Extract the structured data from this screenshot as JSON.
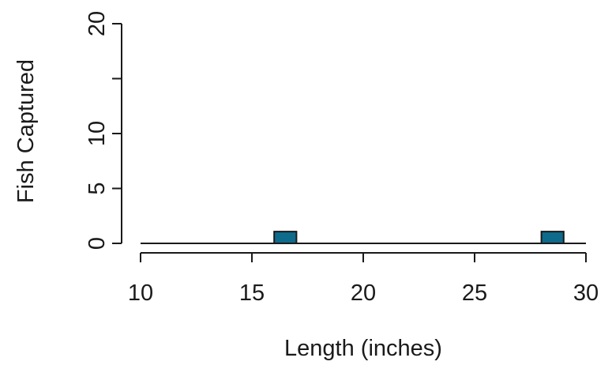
{
  "chart_data": {
    "type": "bar",
    "xlabel": "Length (inches)",
    "ylabel": "Fish Captured",
    "xlim": [
      10,
      30
    ],
    "ylim": [
      0,
      20
    ],
    "x_ticks": [
      10,
      15,
      20,
      25,
      30
    ],
    "y_ticks": [
      0,
      5,
      10,
      15,
      20
    ],
    "y_tick_labels": [
      "0",
      "5",
      "10",
      "",
      "20"
    ],
    "bar_color": "#0f6b8c",
    "bin_width": 1,
    "bins": [
      {
        "x_start": 16,
        "x_end": 17,
        "count": 1
      },
      {
        "x_start": 28,
        "x_end": 29,
        "count": 1
      }
    ],
    "grid": false
  }
}
